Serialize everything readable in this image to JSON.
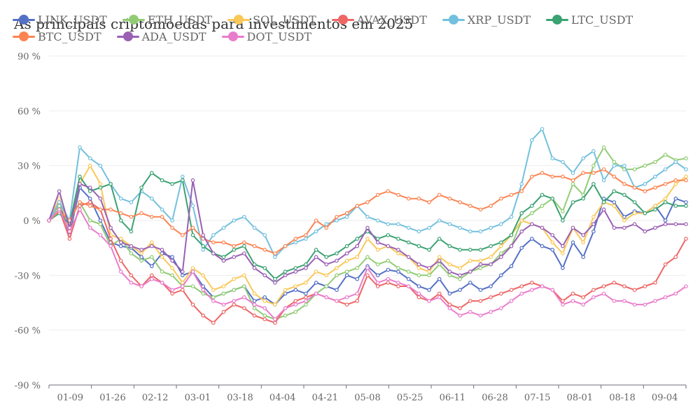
{
  "chart_data": {
    "type": "line",
    "title": "As principais criptomoedas para investimentos em 2025",
    "ylim": [
      -90,
      90
    ],
    "yticks": [
      "-90 %",
      "-60 %",
      "-30 %",
      "0 %",
      "30 %",
      "60 %",
      "90 %"
    ],
    "ytick_values": [
      -90,
      -60,
      -30,
      0,
      30,
      60,
      90
    ],
    "x": [
      "01-01",
      "01-05",
      "01-09",
      "01-13",
      "01-17",
      "01-21",
      "01-26",
      "01-30",
      "02-03",
      "02-07",
      "02-12",
      "02-16",
      "02-20",
      "02-24",
      "03-01",
      "03-05",
      "03-09",
      "03-13",
      "03-18",
      "03-22",
      "03-26",
      "03-30",
      "04-04",
      "04-08",
      "04-12",
      "04-16",
      "04-21",
      "04-25",
      "04-29",
      "05-03",
      "05-08",
      "05-12",
      "05-16",
      "05-20",
      "05-25",
      "05-29",
      "06-02",
      "06-06",
      "06-11",
      "06-15",
      "06-19",
      "06-23",
      "06-28",
      "07-02",
      "07-06",
      "07-10",
      "07-15",
      "07-19",
      "07-23",
      "07-27",
      "08-01",
      "08-05",
      "08-09",
      "08-13",
      "08-18",
      "08-22",
      "08-26",
      "08-30",
      "09-04",
      "09-08",
      "09-12",
      "09-16",
      "09-20"
    ],
    "xticks": [
      "01-09",
      "01-26",
      "02-12",
      "03-01",
      "03-18",
      "04-04",
      "04-21",
      "05-08",
      "05-25",
      "06-11",
      "06-28",
      "07-15",
      "08-01",
      "08-18",
      "09-04"
    ],
    "grid": true,
    "legend_position": "top-left",
    "series": [
      {
        "name": "LINK_USDT",
        "color": "#5470c6",
        "values": [
          0,
          10,
          -8,
          18,
          12,
          0,
          -12,
          -14,
          -15,
          -20,
          -25,
          -18,
          -20,
          -30,
          -28,
          -36,
          -42,
          -40,
          -38,
          -36,
          -44,
          -42,
          -46,
          -40,
          -38,
          -40,
          -34,
          -36,
          -38,
          -30,
          -32,
          -25,
          -30,
          -27,
          -28,
          -32,
          -36,
          -38,
          -32,
          -40,
          -38,
          -34,
          -38,
          -36,
          -30,
          -25,
          -15,
          -10,
          -14,
          -16,
          -26,
          -12,
          -20,
          -6,
          12,
          10,
          2,
          5,
          4,
          8,
          0,
          12,
          10
        ]
      },
      {
        "name": "ETH_USDT",
        "color": "#91cc75",
        "values": [
          0,
          8,
          0,
          10,
          0,
          -2,
          -14,
          -10,
          -18,
          -22,
          -20,
          -28,
          -30,
          -36,
          -36,
          -40,
          -42,
          -40,
          -38,
          -36,
          -48,
          -52,
          -54,
          -52,
          -50,
          -46,
          -40,
          -36,
          -30,
          -28,
          -26,
          -20,
          -24,
          -22,
          -26,
          -28,
          -30,
          -30,
          -24,
          -30,
          -32,
          -28,
          -26,
          -24,
          -18,
          -14,
          0,
          4,
          8,
          12,
          5,
          20,
          14,
          30,
          40,
          32,
          28,
          28,
          30,
          32,
          36,
          33,
          34
        ]
      },
      {
        "name": "SOL_USDT",
        "color": "#fac858",
        "values": [
          0,
          12,
          -5,
          20,
          30,
          20,
          -8,
          -10,
          -14,
          -18,
          -12,
          -20,
          -26,
          -34,
          -26,
          -30,
          -38,
          -36,
          -32,
          -30,
          -40,
          -44,
          -46,
          -38,
          -36,
          -34,
          -28,
          -30,
          -26,
          -22,
          -20,
          -10,
          -16,
          -14,
          -18,
          -20,
          -26,
          -28,
          -20,
          -24,
          -26,
          -22,
          -22,
          -20,
          -14,
          -8,
          0,
          -2,
          -4,
          -12,
          -18,
          -4,
          -12,
          2,
          10,
          8,
          0,
          4,
          4,
          8,
          12,
          20,
          24
        ]
      },
      {
        "name": "AVAX_USDT",
        "color": "#ee6666",
        "values": [
          0,
          6,
          -10,
          8,
          10,
          6,
          -10,
          -22,
          -30,
          -36,
          -30,
          -34,
          -40,
          -38,
          -46,
          -52,
          -56,
          -50,
          -46,
          -48,
          -52,
          -54,
          -56,
          -48,
          -44,
          -42,
          -40,
          -42,
          -44,
          -46,
          -44,
          -30,
          -36,
          -34,
          -36,
          -36,
          -42,
          -44,
          -40,
          -46,
          -48,
          -44,
          -44,
          -42,
          -40,
          -38,
          -36,
          -34,
          -36,
          -38,
          -44,
          -40,
          -42,
          -38,
          -36,
          -34,
          -36,
          -38,
          -36,
          -34,
          -24,
          -20,
          -10
        ]
      },
      {
        "name": "XRP_USDT",
        "color": "#73c0de",
        "values": [
          0,
          10,
          0,
          40,
          34,
          30,
          20,
          12,
          10,
          16,
          12,
          6,
          0,
          24,
          8,
          -16,
          -8,
          -4,
          0,
          2,
          -4,
          -8,
          -20,
          -14,
          -12,
          -10,
          -6,
          -2,
          0,
          2,
          8,
          2,
          0,
          -2,
          -2,
          -4,
          -6,
          -4,
          0,
          -2,
          -4,
          -6,
          -6,
          -4,
          -2,
          2,
          20,
          44,
          50,
          34,
          32,
          26,
          34,
          38,
          22,
          30,
          30,
          18,
          20,
          24,
          28,
          32,
          28
        ]
      },
      {
        "name": "LTC_USDT",
        "color": "#3ba272",
        "values": [
          0,
          4,
          -2,
          24,
          16,
          18,
          20,
          0,
          -6,
          18,
          26,
          22,
          20,
          22,
          -8,
          -14,
          -18,
          -20,
          -16,
          -14,
          -24,
          -26,
          -32,
          -28,
          -26,
          -24,
          -16,
          -20,
          -18,
          -14,
          -10,
          -6,
          -10,
          -8,
          -10,
          -12,
          -14,
          -16,
          -10,
          -14,
          -16,
          -16,
          -16,
          -14,
          -12,
          -8,
          4,
          8,
          14,
          12,
          0,
          10,
          12,
          20,
          10,
          16,
          14,
          10,
          4,
          6,
          10,
          8,
          8
        ]
      },
      {
        "name": "BTC_USDT",
        "color": "#fc8452",
        "values": [
          0,
          5,
          0,
          10,
          8,
          6,
          6,
          4,
          2,
          4,
          2,
          2,
          -4,
          -8,
          -4,
          -10,
          -12,
          -12,
          -14,
          -12,
          -14,
          -16,
          -18,
          -14,
          -10,
          -8,
          0,
          -4,
          2,
          4,
          8,
          10,
          14,
          16,
          14,
          12,
          12,
          10,
          14,
          12,
          10,
          8,
          6,
          8,
          12,
          14,
          16,
          24,
          26,
          24,
          24,
          22,
          26,
          26,
          28,
          24,
          20,
          18,
          16,
          18,
          20,
          22,
          22
        ]
      },
      {
        "name": "ADA_USDT",
        "color": "#9a60b4",
        "values": [
          0,
          16,
          -4,
          20,
          18,
          12,
          -4,
          -12,
          -14,
          -16,
          -14,
          -16,
          -22,
          -28,
          22,
          -8,
          -18,
          -22,
          -20,
          -18,
          -26,
          -30,
          -34,
          -30,
          -28,
          -26,
          -20,
          -24,
          -22,
          -18,
          -14,
          -4,
          -12,
          -14,
          -16,
          -20,
          -24,
          -26,
          -22,
          -28,
          -30,
          -28,
          -24,
          -24,
          -20,
          -14,
          -6,
          -2,
          -4,
          -8,
          -14,
          -4,
          -8,
          -2,
          6,
          -4,
          -4,
          -2,
          -6,
          -4,
          -2,
          -2,
          -2
        ]
      },
      {
        "name": "DOT_USDT",
        "color": "#ea7ccc",
        "values": [
          0,
          6,
          -6,
          6,
          -4,
          -8,
          -14,
          -28,
          -34,
          -36,
          -32,
          -34,
          -38,
          -36,
          -28,
          -38,
          -44,
          -46,
          -44,
          -42,
          -46,
          -48,
          -54,
          -48,
          -46,
          -44,
          -40,
          -42,
          -44,
          -42,
          -40,
          -26,
          -34,
          -32,
          -34,
          -36,
          -40,
          -44,
          -42,
          -48,
          -52,
          -50,
          -52,
          -50,
          -48,
          -44,
          -40,
          -38,
          -36,
          -38,
          -46,
          -44,
          -46,
          -42,
          -40,
          -44,
          -44,
          -46,
          -46,
          -44,
          -42,
          -40,
          -36
        ]
      }
    ]
  }
}
